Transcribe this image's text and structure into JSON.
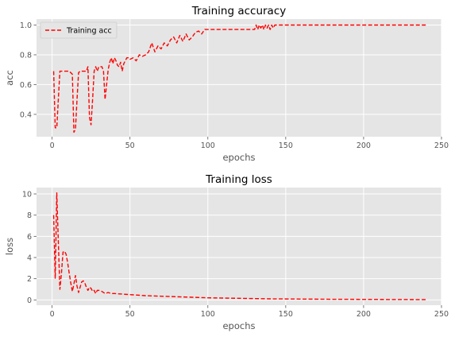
{
  "chart_data": [
    {
      "type": "line",
      "title": "Training accuracy",
      "xlabel": "epochs",
      "ylabel": "acc",
      "xlim": [
        -10,
        250
      ],
      "ylim": [
        0.25,
        1.04
      ],
      "xticks": [
        0,
        50,
        100,
        150,
        200,
        250
      ],
      "yticks": [
        0.4,
        0.6,
        0.8,
        1.0
      ],
      "xtick_labels": [
        "0",
        "50",
        "100",
        "150",
        "200",
        "250"
      ],
      "ytick_labels": [
        "0.4",
        "0.6",
        "0.8",
        "1.0"
      ],
      "grid": true,
      "legend": {
        "placement": "top-left",
        "entries": [
          "Training acc"
        ]
      },
      "series": [
        {
          "name": "Training acc",
          "color": "#ff0000",
          "style": "dashed",
          "x": [
            1,
            2,
            3,
            4,
            5,
            6,
            7,
            8,
            9,
            10,
            11,
            12,
            13,
            14,
            15,
            16,
            17,
            18,
            19,
            20,
            21,
            22,
            23,
            24,
            25,
            26,
            27,
            28,
            29,
            30,
            31,
            32,
            33,
            34,
            35,
            36,
            37,
            38,
            39,
            40,
            41,
            42,
            43,
            44,
            45,
            46,
            47,
            48,
            49,
            50,
            52,
            54,
            56,
            58,
            60,
            62,
            64,
            66,
            68,
            70,
            72,
            74,
            76,
            78,
            80,
            82,
            84,
            86,
            88,
            90,
            92,
            94,
            96,
            98,
            100,
            105,
            110,
            115,
            120,
            125,
            130,
            131,
            132,
            133,
            134,
            135,
            136,
            137,
            138,
            139,
            140,
            141,
            142,
            143,
            144,
            145,
            150,
            160,
            170,
            180,
            190,
            200,
            210,
            220,
            230,
            240
          ],
          "y": [
            0.69,
            0.31,
            0.31,
            0.5,
            0.69,
            0.69,
            0.69,
            0.69,
            0.69,
            0.69,
            0.69,
            0.68,
            0.67,
            0.28,
            0.3,
            0.5,
            0.68,
            0.69,
            0.69,
            0.69,
            0.69,
            0.69,
            0.72,
            0.38,
            0.33,
            0.5,
            0.69,
            0.72,
            0.69,
            0.72,
            0.72,
            0.72,
            0.69,
            0.5,
            0.6,
            0.7,
            0.75,
            0.78,
            0.74,
            0.78,
            0.76,
            0.73,
            0.72,
            0.75,
            0.69,
            0.74,
            0.76,
            0.78,
            0.78,
            0.77,
            0.78,
            0.76,
            0.8,
            0.79,
            0.8,
            0.82,
            0.88,
            0.82,
            0.86,
            0.84,
            0.88,
            0.86,
            0.9,
            0.92,
            0.88,
            0.93,
            0.89,
            0.94,
            0.9,
            0.92,
            0.95,
            0.96,
            0.94,
            0.97,
            0.97,
            0.97,
            0.97,
            0.97,
            0.97,
            0.97,
            0.97,
            1.0,
            0.97,
            1.0,
            0.98,
            1.0,
            0.97,
            1.0,
            0.98,
            1.0,
            0.97,
            1.0,
            0.98,
            1.0,
            1.0,
            1.0,
            1.0,
            1.0,
            1.0,
            1.0,
            1.0,
            1.0,
            1.0,
            1.0,
            1.0,
            1.0
          ]
        }
      ]
    },
    {
      "type": "line",
      "title": "Training  loss",
      "xlabel": "epochs",
      "ylabel": "loss",
      "xlim": [
        -10,
        250
      ],
      "ylim": [
        -0.5,
        10.6
      ],
      "xticks": [
        0,
        50,
        100,
        150,
        200,
        250
      ],
      "yticks": [
        0,
        2,
        4,
        6,
        8,
        10
      ],
      "xtick_labels": [
        "0",
        "50",
        "100",
        "150",
        "200",
        "250"
      ],
      "ytick_labels": [
        "0",
        "2",
        "4",
        "6",
        "8",
        "10"
      ],
      "grid": true,
      "series": [
        {
          "color": "#ff0000",
          "style": "dashed",
          "x": [
            1,
            2,
            3,
            4,
            5,
            6,
            7,
            8,
            9,
            10,
            11,
            12,
            13,
            14,
            15,
            16,
            17,
            18,
            19,
            20,
            21,
            22,
            23,
            24,
            25,
            26,
            27,
            28,
            29,
            30,
            32,
            34,
            36,
            38,
            40,
            45,
            50,
            55,
            60,
            70,
            80,
            90,
            100,
            120,
            140,
            160,
            180,
            200,
            220,
            240
          ],
          "y": [
            8.0,
            2.0,
            10.1,
            5.5,
            1.0,
            2.5,
            4.5,
            4.6,
            4.3,
            3.5,
            2.5,
            1.6,
            0.8,
            1.5,
            2.3,
            1.3,
            0.7,
            1.2,
            1.7,
            1.8,
            1.6,
            1.2,
            0.9,
            1.2,
            1.1,
            0.8,
            0.9,
            0.6,
            0.9,
            0.9,
            0.8,
            0.6,
            0.7,
            0.6,
            0.6,
            0.55,
            0.5,
            0.45,
            0.4,
            0.35,
            0.3,
            0.25,
            0.2,
            0.15,
            0.1,
            0.08,
            0.06,
            0.05,
            0.04,
            0.03
          ]
        }
      ]
    }
  ]
}
